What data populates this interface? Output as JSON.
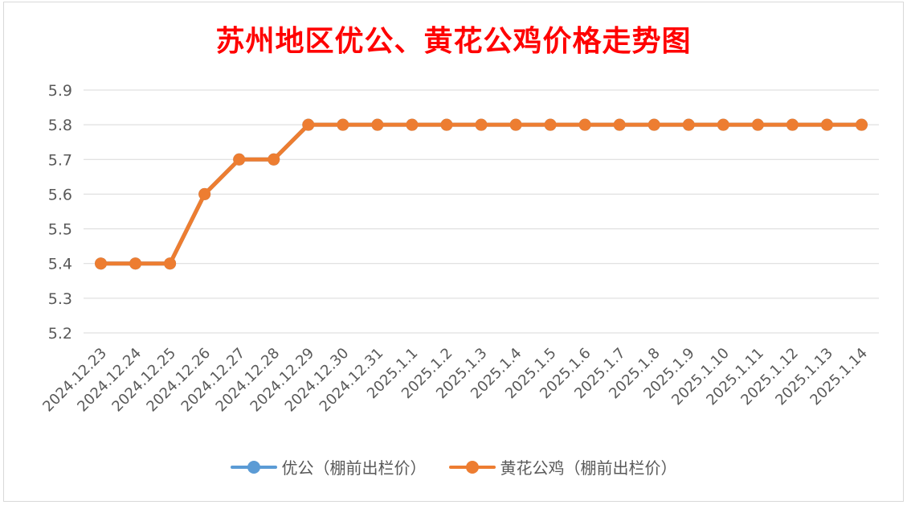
{
  "chart_data": {
    "type": "line",
    "title": "苏州地区优公、黄花公鸡价格走势图",
    "categories": [
      "2024.12.23",
      "2024.12.24",
      "2024.12.25",
      "2024.12.26",
      "2024.12.27",
      "2024.12.28",
      "2024.12.29",
      "2024.12.30",
      "2024.12.31",
      "2025.1.1",
      "2025.1.2",
      "2025.1.3",
      "2025.1.4",
      "2025.1.5",
      "2025.1.6",
      "2025.1.7",
      "2025.1.8",
      "2025.1.9",
      "2025.1.10",
      "2025.1.11",
      "2025.1.12",
      "2025.1.13",
      "2025.1.14"
    ],
    "yticks": [
      "5.2",
      "5.3",
      "5.4",
      "5.5",
      "5.6",
      "5.7",
      "5.8",
      "5.9"
    ],
    "ylim": [
      5.2,
      5.9
    ],
    "grid": true,
    "legend_position": "bottom",
    "series": [
      {
        "name": "优公（棚前出栏价）",
        "color": "#5b9bd5",
        "values": [
          5.4,
          5.4,
          5.4,
          5.6,
          5.7,
          5.7,
          5.8,
          5.8,
          5.8,
          5.8,
          5.8,
          5.8,
          5.8,
          5.8,
          5.8,
          5.8,
          5.8,
          5.8,
          5.8,
          5.8,
          5.8,
          5.8,
          5.8
        ]
      },
      {
        "name": "黄花公鸡（棚前出栏价）",
        "color": "#ed7d31",
        "values": [
          5.4,
          5.4,
          5.4,
          5.6,
          5.7,
          5.7,
          5.8,
          5.8,
          5.8,
          5.8,
          5.8,
          5.8,
          5.8,
          5.8,
          5.8,
          5.8,
          5.8,
          5.8,
          5.8,
          5.8,
          5.8,
          5.8,
          5.8
        ]
      }
    ]
  }
}
